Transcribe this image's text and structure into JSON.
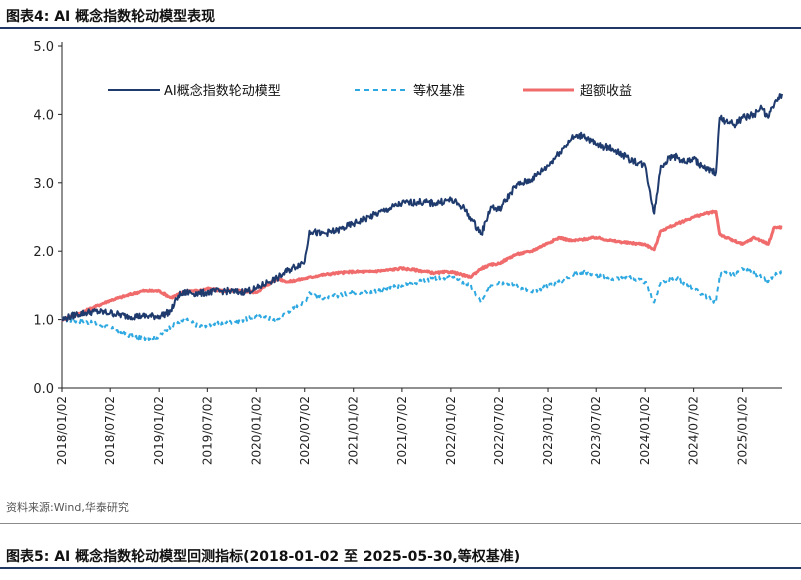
{
  "header": {
    "figure_label": "图表4:",
    "figure_title": "AI 概念指数轮动模型表现"
  },
  "footer": {
    "source": "资料来源:Wind,华泰研究",
    "next_figure_label": "图表5:",
    "next_figure_title": "AI 概念指数轮动模型回测指标(2018-01-02 至 2025-05-30,等权基准)"
  },
  "colors": {
    "model": "#1f3b6e",
    "benchmark": "#2ea8e0",
    "excess": "#f06b6b"
  },
  "chart_data": {
    "type": "line",
    "title": "",
    "xlabel": "",
    "ylabel": "",
    "ylim": [
      0.0,
      5.0
    ],
    "yticks": [
      "0.0",
      "1.0",
      "2.0",
      "3.0",
      "4.0",
      "5.0"
    ],
    "xticks": [
      "2018/01/02",
      "2018/07/02",
      "2019/01/02",
      "2019/07/02",
      "2020/01/02",
      "2020/07/02",
      "2021/01/02",
      "2021/07/02",
      "2022/01/02",
      "2022/07/02",
      "2023/01/02",
      "2023/07/02",
      "2024/01/02",
      "2024/07/02",
      "2025/01/02"
    ],
    "grid": false,
    "legend": "top",
    "series": [
      {
        "name": "AI概念指数轮动模型",
        "style": "solid",
        "x": [
          "2018-01-02",
          "2018-03-01",
          "2018-05-01",
          "2018-07-02",
          "2018-09-01",
          "2018-11-01",
          "2019-01-02",
          "2019-02-15",
          "2019-03-15",
          "2019-04-15",
          "2019-06-01",
          "2019-07-02",
          "2019-09-01",
          "2019-11-01",
          "2020-01-02",
          "2020-02-15",
          "2020-03-20",
          "2020-05-01",
          "2020-07-02",
          "2020-07-20",
          "2020-09-01",
          "2020-11-01",
          "2021-01-02",
          "2021-03-01",
          "2021-05-01",
          "2021-07-02",
          "2021-09-01",
          "2021-11-01",
          "2022-01-02",
          "2022-02-15",
          "2022-03-15",
          "2022-04-27",
          "2022-06-01",
          "2022-07-02",
          "2022-09-01",
          "2022-11-01",
          "2023-01-02",
          "2023-02-15",
          "2023-04-01",
          "2023-05-15",
          "2023-07-02",
          "2023-09-01",
          "2023-11-01",
          "2024-01-02",
          "2024-02-05",
          "2024-03-01",
          "2024-04-15",
          "2024-06-01",
          "2024-07-02",
          "2024-08-15",
          "2024-09-24",
          "2024-10-08",
          "2024-11-01",
          "2024-12-01",
          "2025-01-02",
          "2025-02-15",
          "2025-03-15",
          "2025-04-08",
          "2025-05-01",
          "2025-05-30"
        ],
        "values": [
          1.0,
          1.08,
          1.12,
          1.1,
          1.05,
          1.05,
          1.05,
          1.12,
          1.35,
          1.4,
          1.38,
          1.4,
          1.42,
          1.4,
          1.45,
          1.55,
          1.6,
          1.72,
          1.85,
          2.3,
          2.25,
          2.3,
          2.4,
          2.5,
          2.6,
          2.7,
          2.72,
          2.7,
          2.75,
          2.65,
          2.5,
          2.25,
          2.65,
          2.6,
          2.95,
          3.05,
          3.25,
          3.45,
          3.65,
          3.7,
          3.55,
          3.5,
          3.35,
          3.25,
          2.55,
          3.25,
          3.4,
          3.3,
          3.35,
          3.2,
          3.15,
          3.95,
          3.9,
          3.85,
          3.95,
          4.0,
          4.1,
          3.95,
          4.15,
          4.3
        ]
      },
      {
        "name": "等权基准",
        "style": "dashed",
        "x": [
          "2018-01-02",
          "2018-03-01",
          "2018-05-01",
          "2018-07-02",
          "2018-09-01",
          "2018-11-01",
          "2019-01-02",
          "2019-02-15",
          "2019-04-15",
          "2019-06-01",
          "2019-07-02",
          "2019-09-01",
          "2019-11-01",
          "2020-01-02",
          "2020-03-20",
          "2020-05-01",
          "2020-07-02",
          "2020-07-20",
          "2020-09-01",
          "2020-11-01",
          "2021-01-02",
          "2021-03-01",
          "2021-05-01",
          "2021-07-02",
          "2021-09-01",
          "2021-11-01",
          "2022-01-02",
          "2022-03-15",
          "2022-04-27",
          "2022-06-01",
          "2022-07-02",
          "2022-09-01",
          "2022-11-01",
          "2023-01-02",
          "2023-02-15",
          "2023-04-01",
          "2023-05-15",
          "2023-07-02",
          "2023-09-01",
          "2023-11-01",
          "2024-01-02",
          "2024-02-05",
          "2024-03-01",
          "2024-05-01",
          "2024-07-02",
          "2024-09-24",
          "2024-10-08",
          "2024-11-01",
          "2024-12-01",
          "2025-01-02",
          "2025-03-01",
          "2025-04-08",
          "2025-05-01",
          "2025-05-30"
        ],
        "values": [
          1.0,
          0.98,
          0.95,
          0.88,
          0.78,
          0.72,
          0.75,
          0.9,
          1.0,
          0.9,
          0.92,
          0.95,
          0.98,
          1.05,
          1.0,
          1.12,
          1.25,
          1.4,
          1.32,
          1.35,
          1.4,
          1.4,
          1.45,
          1.5,
          1.55,
          1.6,
          1.62,
          1.5,
          1.25,
          1.5,
          1.55,
          1.5,
          1.4,
          1.5,
          1.55,
          1.65,
          1.7,
          1.65,
          1.6,
          1.62,
          1.55,
          1.25,
          1.55,
          1.6,
          1.45,
          1.25,
          1.65,
          1.7,
          1.65,
          1.75,
          1.65,
          1.55,
          1.65,
          1.7
        ]
      },
      {
        "name": "超额收益",
        "style": "solid-thick",
        "x": [
          "2018-01-02",
          "2018-03-01",
          "2018-05-01",
          "2018-07-02",
          "2018-09-01",
          "2018-11-01",
          "2019-01-02",
          "2019-02-15",
          "2019-04-15",
          "2019-06-01",
          "2019-07-02",
          "2019-09-01",
          "2019-11-01",
          "2020-01-02",
          "2020-03-20",
          "2020-05-01",
          "2020-07-02",
          "2020-09-01",
          "2020-11-01",
          "2021-01-02",
          "2021-03-01",
          "2021-05-01",
          "2021-07-02",
          "2021-09-01",
          "2021-11-01",
          "2022-01-02",
          "2022-03-15",
          "2022-04-27",
          "2022-06-01",
          "2022-07-02",
          "2022-09-01",
          "2022-11-01",
          "2023-01-02",
          "2023-02-15",
          "2023-04-01",
          "2023-07-02",
          "2023-09-01",
          "2023-11-01",
          "2024-01-02",
          "2024-02-05",
          "2024-03-01",
          "2024-05-01",
          "2024-07-02",
          "2024-08-15",
          "2024-09-24",
          "2024-10-08",
          "2024-11-01",
          "2024-12-01",
          "2025-01-02",
          "2025-02-15",
          "2025-03-15",
          "2025-04-08",
          "2025-05-01",
          "2025-05-30"
        ],
        "values": [
          1.0,
          1.08,
          1.18,
          1.28,
          1.35,
          1.42,
          1.42,
          1.32,
          1.42,
          1.42,
          1.45,
          1.42,
          1.42,
          1.4,
          1.6,
          1.55,
          1.6,
          1.65,
          1.68,
          1.7,
          1.7,
          1.72,
          1.75,
          1.72,
          1.68,
          1.7,
          1.62,
          1.75,
          1.8,
          1.82,
          1.95,
          2.0,
          2.12,
          2.2,
          2.15,
          2.2,
          2.15,
          2.12,
          2.1,
          2.02,
          2.3,
          2.4,
          2.5,
          2.55,
          2.58,
          2.25,
          2.2,
          2.15,
          2.1,
          2.2,
          2.15,
          2.1,
          2.35,
          2.35
        ]
      }
    ]
  }
}
